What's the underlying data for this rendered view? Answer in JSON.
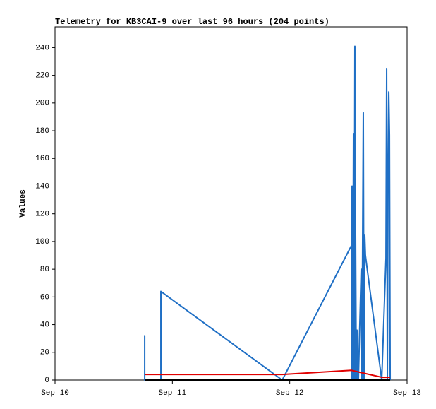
{
  "chart_data": {
    "type": "line",
    "title": "Telemetry for KB3CAI-9 over last 96 hours (204 points)",
    "y_label": "Values",
    "xlim": [
      0,
      3
    ],
    "xticks": [
      {
        "value": 0,
        "label": "Sep 10"
      },
      {
        "value": 1,
        "label": "Sep 11"
      },
      {
        "value": 2,
        "label": "Sep 12"
      },
      {
        "value": 3,
        "label": "Sep 13"
      }
    ],
    "ylim": [
      0,
      255
    ],
    "yticks": [
      0,
      20,
      40,
      60,
      80,
      100,
      120,
      140,
      160,
      180,
      200,
      220,
      240
    ],
    "series": [
      {
        "color": "#1f6fc5",
        "x": [
          0.764,
          0.764,
          0.764,
          0.902,
          0.902,
          1.936,
          2.525,
          2.531,
          2.531,
          2.537,
          2.543,
          2.549,
          2.555,
          2.555,
          2.561,
          2.561,
          2.567,
          2.573,
          2.579,
          2.585,
          2.609,
          2.615,
          2.627,
          2.633,
          2.639,
          2.645,
          2.784,
          2.82,
          2.826,
          2.832,
          2.838,
          2.844,
          2.85,
          2.856
        ],
        "values": [
          0,
          32,
          0,
          0,
          64,
          0,
          97,
          0,
          140,
          0,
          178,
          0,
          241,
          0,
          145,
          108,
          0,
          36,
          0,
          0,
          80,
          0,
          193,
          0,
          105,
          90,
          0,
          88,
          225,
          0,
          145,
          208,
          177,
          0
        ]
      },
      {
        "color": "#e00000",
        "x": [
          0.764,
          1.936,
          2.525,
          2.784,
          2.856
        ],
        "values": [
          4,
          4,
          7,
          2,
          2
        ]
      },
      {
        "color": "#000000",
        "x": [
          0.764,
          2.856
        ],
        "values": [
          0,
          0
        ]
      }
    ]
  }
}
